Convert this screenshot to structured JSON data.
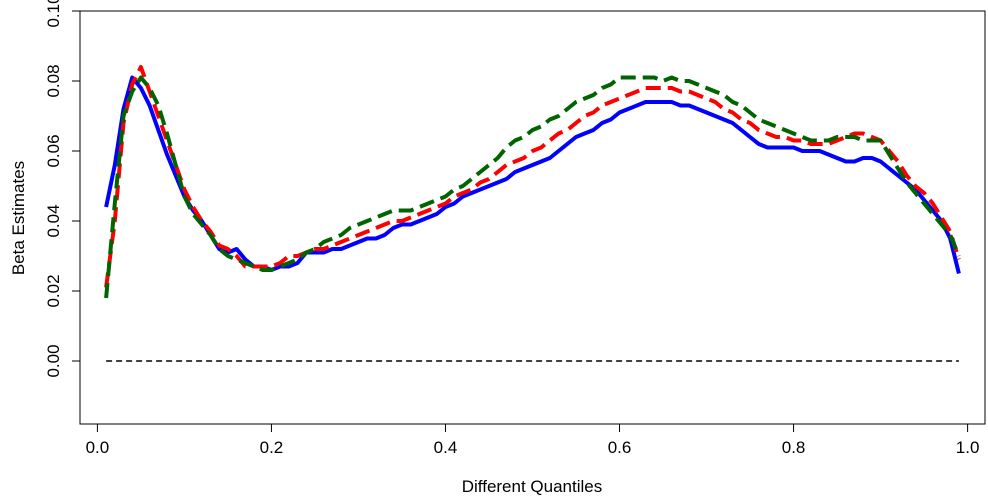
{
  "chart_data": {
    "type": "line",
    "xlabel": "Different Quantiles",
    "ylabel": "Beta Estimates",
    "xlim": [
      -0.02,
      1.02
    ],
    "ylim": [
      -0.018,
      0.1
    ],
    "x_ticks": [
      0.0,
      0.2,
      0.4,
      0.6,
      0.8,
      1.0
    ],
    "x_tick_labels": [
      "0.0",
      "0.2",
      "0.4",
      "0.6",
      "0.8",
      "1.0"
    ],
    "y_ticks": [
      0.0,
      0.02,
      0.04,
      0.06,
      0.08,
      0.1
    ],
    "y_tick_labels": [
      "0.00",
      "0.02",
      "0.04",
      "0.06",
      "0.08",
      "0.10"
    ],
    "grid": false,
    "series": [
      {
        "style": "solid",
        "color": "#0000ff",
        "points": [
          [
            0.01,
            0.044
          ],
          [
            0.02,
            0.056
          ],
          [
            0.03,
            0.072
          ],
          [
            0.04,
            0.081
          ],
          [
            0.05,
            0.078
          ],
          [
            0.06,
            0.073
          ],
          [
            0.07,
            0.066
          ],
          [
            0.08,
            0.059
          ],
          [
            0.09,
            0.053
          ],
          [
            0.1,
            0.047
          ],
          [
            0.11,
            0.043
          ],
          [
            0.12,
            0.04
          ],
          [
            0.13,
            0.036
          ],
          [
            0.14,
            0.032
          ],
          [
            0.15,
            0.031
          ],
          [
            0.16,
            0.032
          ],
          [
            0.17,
            0.029
          ],
          [
            0.18,
            0.027
          ],
          [
            0.19,
            0.027
          ],
          [
            0.2,
            0.026
          ],
          [
            0.21,
            0.027
          ],
          [
            0.22,
            0.027
          ],
          [
            0.23,
            0.028
          ],
          [
            0.24,
            0.031
          ],
          [
            0.25,
            0.031
          ],
          [
            0.26,
            0.031
          ],
          [
            0.27,
            0.032
          ],
          [
            0.28,
            0.032
          ],
          [
            0.29,
            0.033
          ],
          [
            0.3,
            0.034
          ],
          [
            0.31,
            0.035
          ],
          [
            0.32,
            0.035
          ],
          [
            0.33,
            0.036
          ],
          [
            0.34,
            0.038
          ],
          [
            0.35,
            0.039
          ],
          [
            0.36,
            0.039
          ],
          [
            0.37,
            0.04
          ],
          [
            0.38,
            0.041
          ],
          [
            0.39,
            0.042
          ],
          [
            0.4,
            0.044
          ],
          [
            0.41,
            0.045
          ],
          [
            0.42,
            0.047
          ],
          [
            0.43,
            0.048
          ],
          [
            0.44,
            0.049
          ],
          [
            0.45,
            0.05
          ],
          [
            0.46,
            0.051
          ],
          [
            0.47,
            0.052
          ],
          [
            0.48,
            0.054
          ],
          [
            0.49,
            0.055
          ],
          [
            0.5,
            0.056
          ],
          [
            0.51,
            0.057
          ],
          [
            0.52,
            0.058
          ],
          [
            0.53,
            0.06
          ],
          [
            0.54,
            0.062
          ],
          [
            0.55,
            0.064
          ],
          [
            0.56,
            0.065
          ],
          [
            0.57,
            0.066
          ],
          [
            0.58,
            0.068
          ],
          [
            0.59,
            0.069
          ],
          [
            0.6,
            0.071
          ],
          [
            0.61,
            0.072
          ],
          [
            0.62,
            0.073
          ],
          [
            0.63,
            0.074
          ],
          [
            0.64,
            0.074
          ],
          [
            0.65,
            0.074
          ],
          [
            0.66,
            0.074
          ],
          [
            0.67,
            0.073
          ],
          [
            0.68,
            0.073
          ],
          [
            0.69,
            0.072
          ],
          [
            0.7,
            0.071
          ],
          [
            0.71,
            0.07
          ],
          [
            0.72,
            0.069
          ],
          [
            0.73,
            0.068
          ],
          [
            0.74,
            0.066
          ],
          [
            0.75,
            0.064
          ],
          [
            0.76,
            0.062
          ],
          [
            0.77,
            0.061
          ],
          [
            0.78,
            0.061
          ],
          [
            0.79,
            0.061
          ],
          [
            0.8,
            0.061
          ],
          [
            0.81,
            0.06
          ],
          [
            0.82,
            0.06
          ],
          [
            0.83,
            0.06
          ],
          [
            0.84,
            0.059
          ],
          [
            0.85,
            0.058
          ],
          [
            0.86,
            0.057
          ],
          [
            0.87,
            0.057
          ],
          [
            0.88,
            0.058
          ],
          [
            0.89,
            0.058
          ],
          [
            0.9,
            0.057
          ],
          [
            0.91,
            0.055
          ],
          [
            0.92,
            0.053
          ],
          [
            0.93,
            0.051
          ],
          [
            0.94,
            0.049
          ],
          [
            0.95,
            0.046
          ],
          [
            0.96,
            0.043
          ],
          [
            0.97,
            0.04
          ],
          [
            0.98,
            0.035
          ],
          [
            0.99,
            0.025
          ]
        ]
      },
      {
        "style": "dashed",
        "color": "#ff0000",
        "points": [
          [
            0.01,
            0.021
          ],
          [
            0.02,
            0.04
          ],
          [
            0.03,
            0.068
          ],
          [
            0.04,
            0.079
          ],
          [
            0.05,
            0.084
          ],
          [
            0.06,
            0.077
          ],
          [
            0.07,
            0.07
          ],
          [
            0.08,
            0.063
          ],
          [
            0.09,
            0.056
          ],
          [
            0.1,
            0.049
          ],
          [
            0.11,
            0.044
          ],
          [
            0.12,
            0.04
          ],
          [
            0.13,
            0.037
          ],
          [
            0.14,
            0.033
          ],
          [
            0.15,
            0.032
          ],
          [
            0.16,
            0.03
          ],
          [
            0.17,
            0.027
          ],
          [
            0.18,
            0.027
          ],
          [
            0.19,
            0.027
          ],
          [
            0.2,
            0.027
          ],
          [
            0.21,
            0.028
          ],
          [
            0.22,
            0.03
          ],
          [
            0.23,
            0.03
          ],
          [
            0.24,
            0.031
          ],
          [
            0.25,
            0.032
          ],
          [
            0.26,
            0.032
          ],
          [
            0.27,
            0.033
          ],
          [
            0.28,
            0.034
          ],
          [
            0.29,
            0.035
          ],
          [
            0.3,
            0.036
          ],
          [
            0.31,
            0.037
          ],
          [
            0.32,
            0.038
          ],
          [
            0.33,
            0.039
          ],
          [
            0.34,
            0.04
          ],
          [
            0.35,
            0.04
          ],
          [
            0.36,
            0.041
          ],
          [
            0.37,
            0.042
          ],
          [
            0.38,
            0.043
          ],
          [
            0.39,
            0.044
          ],
          [
            0.4,
            0.045
          ],
          [
            0.41,
            0.047
          ],
          [
            0.42,
            0.048
          ],
          [
            0.43,
            0.049
          ],
          [
            0.44,
            0.051
          ],
          [
            0.45,
            0.052
          ],
          [
            0.46,
            0.054
          ],
          [
            0.47,
            0.056
          ],
          [
            0.48,
            0.057
          ],
          [
            0.49,
            0.058
          ],
          [
            0.5,
            0.06
          ],
          [
            0.51,
            0.061
          ],
          [
            0.52,
            0.063
          ],
          [
            0.53,
            0.065
          ],
          [
            0.54,
            0.066
          ],
          [
            0.55,
            0.068
          ],
          [
            0.56,
            0.07
          ],
          [
            0.57,
            0.071
          ],
          [
            0.58,
            0.073
          ],
          [
            0.59,
            0.074
          ],
          [
            0.6,
            0.075
          ],
          [
            0.61,
            0.076
          ],
          [
            0.62,
            0.077
          ],
          [
            0.63,
            0.078
          ],
          [
            0.64,
            0.078
          ],
          [
            0.65,
            0.078
          ],
          [
            0.66,
            0.078
          ],
          [
            0.67,
            0.077
          ],
          [
            0.68,
            0.077
          ],
          [
            0.69,
            0.076
          ],
          [
            0.7,
            0.075
          ],
          [
            0.71,
            0.074
          ],
          [
            0.72,
            0.072
          ],
          [
            0.73,
            0.071
          ],
          [
            0.74,
            0.069
          ],
          [
            0.75,
            0.068
          ],
          [
            0.76,
            0.066
          ],
          [
            0.77,
            0.065
          ],
          [
            0.78,
            0.064
          ],
          [
            0.79,
            0.064
          ],
          [
            0.8,
            0.063
          ],
          [
            0.81,
            0.063
          ],
          [
            0.82,
            0.062
          ],
          [
            0.83,
            0.062
          ],
          [
            0.84,
            0.062
          ],
          [
            0.85,
            0.063
          ],
          [
            0.86,
            0.064
          ],
          [
            0.87,
            0.065
          ],
          [
            0.88,
            0.065
          ],
          [
            0.89,
            0.064
          ],
          [
            0.9,
            0.063
          ],
          [
            0.91,
            0.06
          ],
          [
            0.92,
            0.057
          ],
          [
            0.93,
            0.053
          ],
          [
            0.94,
            0.05
          ],
          [
            0.95,
            0.048
          ],
          [
            0.96,
            0.045
          ],
          [
            0.97,
            0.041
          ],
          [
            0.98,
            0.037
          ],
          [
            0.99,
            0.029
          ]
        ]
      },
      {
        "style": "dashed",
        "color": "#006400",
        "points": [
          [
            0.01,
            0.018
          ],
          [
            0.02,
            0.045
          ],
          [
            0.03,
            0.07
          ],
          [
            0.04,
            0.077
          ],
          [
            0.05,
            0.081
          ],
          [
            0.06,
            0.078
          ],
          [
            0.07,
            0.073
          ],
          [
            0.08,
            0.065
          ],
          [
            0.09,
            0.056
          ],
          [
            0.1,
            0.047
          ],
          [
            0.11,
            0.042
          ],
          [
            0.12,
            0.039
          ],
          [
            0.13,
            0.036
          ],
          [
            0.14,
            0.032
          ],
          [
            0.15,
            0.03
          ],
          [
            0.16,
            0.029
          ],
          [
            0.17,
            0.028
          ],
          [
            0.18,
            0.027
          ],
          [
            0.19,
            0.026
          ],
          [
            0.2,
            0.026
          ],
          [
            0.21,
            0.027
          ],
          [
            0.22,
            0.028
          ],
          [
            0.23,
            0.029
          ],
          [
            0.24,
            0.031
          ],
          [
            0.25,
            0.032
          ],
          [
            0.26,
            0.034
          ],
          [
            0.27,
            0.035
          ],
          [
            0.28,
            0.036
          ],
          [
            0.29,
            0.038
          ],
          [
            0.3,
            0.039
          ],
          [
            0.31,
            0.04
          ],
          [
            0.32,
            0.041
          ],
          [
            0.33,
            0.042
          ],
          [
            0.34,
            0.043
          ],
          [
            0.35,
            0.043
          ],
          [
            0.36,
            0.043
          ],
          [
            0.37,
            0.044
          ],
          [
            0.38,
            0.045
          ],
          [
            0.39,
            0.046
          ],
          [
            0.4,
            0.047
          ],
          [
            0.41,
            0.049
          ],
          [
            0.42,
            0.05
          ],
          [
            0.43,
            0.052
          ],
          [
            0.44,
            0.054
          ],
          [
            0.45,
            0.056
          ],
          [
            0.46,
            0.058
          ],
          [
            0.47,
            0.061
          ],
          [
            0.48,
            0.063
          ],
          [
            0.49,
            0.064
          ],
          [
            0.5,
            0.066
          ],
          [
            0.51,
            0.067
          ],
          [
            0.52,
            0.069
          ],
          [
            0.53,
            0.07
          ],
          [
            0.54,
            0.072
          ],
          [
            0.55,
            0.074
          ],
          [
            0.56,
            0.075
          ],
          [
            0.57,
            0.076
          ],
          [
            0.58,
            0.078
          ],
          [
            0.59,
            0.079
          ],
          [
            0.6,
            0.081
          ],
          [
            0.61,
            0.081
          ],
          [
            0.62,
            0.081
          ],
          [
            0.63,
            0.081
          ],
          [
            0.64,
            0.081
          ],
          [
            0.65,
            0.08
          ],
          [
            0.66,
            0.081
          ],
          [
            0.67,
            0.08
          ],
          [
            0.68,
            0.08
          ],
          [
            0.69,
            0.079
          ],
          [
            0.7,
            0.078
          ],
          [
            0.71,
            0.077
          ],
          [
            0.72,
            0.076
          ],
          [
            0.73,
            0.074
          ],
          [
            0.74,
            0.073
          ],
          [
            0.75,
            0.071
          ],
          [
            0.76,
            0.069
          ],
          [
            0.77,
            0.068
          ],
          [
            0.78,
            0.067
          ],
          [
            0.79,
            0.066
          ],
          [
            0.8,
            0.065
          ],
          [
            0.81,
            0.064
          ],
          [
            0.82,
            0.063
          ],
          [
            0.83,
            0.063
          ],
          [
            0.84,
            0.063
          ],
          [
            0.85,
            0.064
          ],
          [
            0.86,
            0.064
          ],
          [
            0.87,
            0.064
          ],
          [
            0.88,
            0.063
          ],
          [
            0.89,
            0.063
          ],
          [
            0.9,
            0.063
          ],
          [
            0.91,
            0.059
          ],
          [
            0.92,
            0.055
          ],
          [
            0.93,
            0.051
          ],
          [
            0.94,
            0.048
          ],
          [
            0.95,
            0.045
          ],
          [
            0.96,
            0.042
          ],
          [
            0.97,
            0.039
          ],
          [
            0.98,
            0.036
          ],
          [
            0.99,
            0.03
          ]
        ]
      }
    ],
    "reference_line": {
      "y": 0.0,
      "x_from": 0.01,
      "x_to": 0.99,
      "style": "dashed",
      "color": "#000000"
    }
  }
}
